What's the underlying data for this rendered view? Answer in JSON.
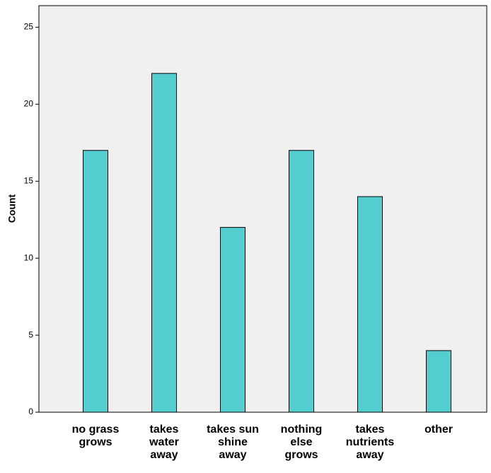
{
  "chart_data": {
    "type": "bar",
    "y_label": "Count",
    "categories": [
      "no grass grows",
      "takes water away",
      "takes sun shine away",
      "nothing else grows",
      "takes nutrients away",
      "other"
    ],
    "values": [
      17,
      22,
      12,
      17,
      14,
      4
    ],
    "color": "#53cdd0",
    "ylim": [
      0,
      26.4
    ],
    "yticks": [
      0,
      5,
      10,
      15,
      20,
      25
    ]
  }
}
